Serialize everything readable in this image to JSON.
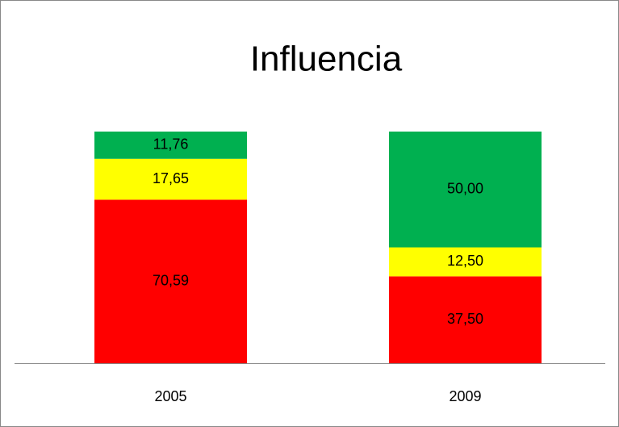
{
  "chart_data": {
    "type": "stacked_bar",
    "title": "Influencia",
    "categories": [
      "2005",
      "2009"
    ],
    "series": [
      {
        "color": "#ff0000",
        "values": [
          70.59,
          37.5
        ],
        "value_labels": [
          "70,59",
          "37,50"
        ]
      },
      {
        "color": "#ffff00",
        "values": [
          17.65,
          12.5
        ],
        "value_labels": [
          "17,65",
          "12,50"
        ]
      },
      {
        "color": "#00b050",
        "values": [
          11.76,
          50
        ],
        "value_labels": [
          "11,76",
          "50,00"
        ]
      }
    ],
    "ylim": [
      0,
      100
    ]
  }
}
